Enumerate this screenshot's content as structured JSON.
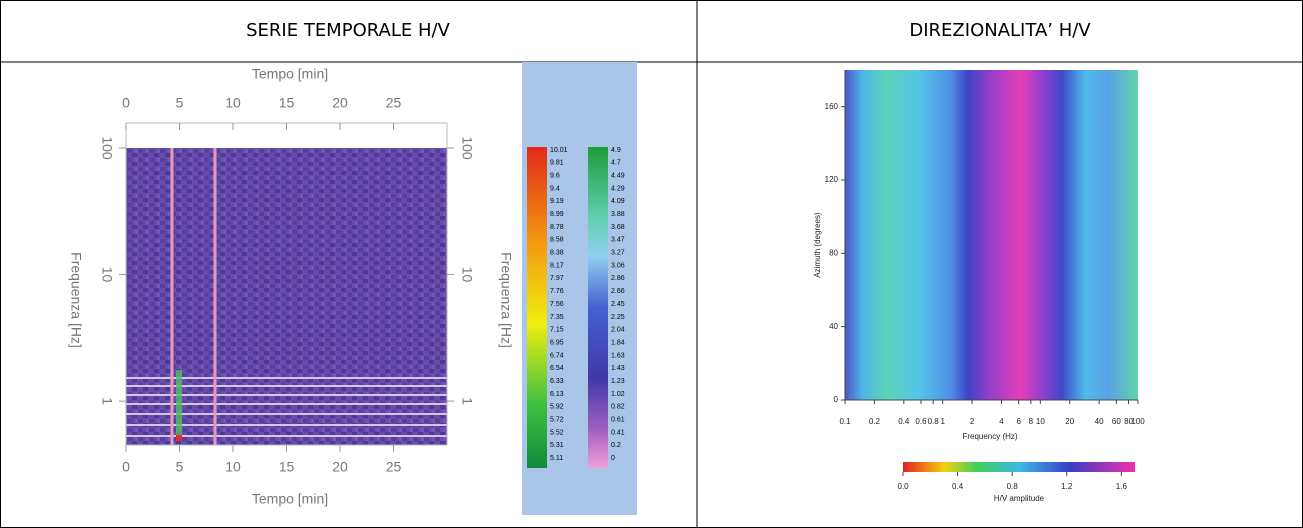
{
  "header": {
    "left": "SERIE TEMPORALE H/V",
    "right": "DIREZIONALITA’ H/V"
  },
  "spectrogram": {
    "x_label": "Tempo [min]",
    "y_label": "Frequenza [Hz]",
    "xlim": [
      0,
      30
    ],
    "xticks": [
      0,
      5,
      10,
      15,
      20,
      25
    ],
    "ylim": [
      0.45,
      100
    ],
    "yticks": [
      100,
      10,
      1
    ],
    "log_y": true,
    "colorbar_left": [
      "10.01",
      "9.81",
      "9.6",
      "9.4",
      "9.19",
      "8.99",
      "8.78",
      "8.58",
      "8.38",
      "8.17",
      "7.97",
      "7.76",
      "7.56",
      "7.35",
      "7.15",
      "6.95",
      "6.74",
      "6.54",
      "6.33",
      "6.13",
      "5.92",
      "5.72",
      "5.52",
      "5.31",
      "5.11"
    ],
    "colorbar_right": [
      "4.9",
      "4.7",
      "4.49",
      "4.29",
      "4.09",
      "3.88",
      "3.68",
      "3.47",
      "3.27",
      "3.06",
      "2.86",
      "2.66",
      "2.45",
      "2.25",
      "2.04",
      "1.84",
      "1.63",
      "1.43",
      "1.23",
      "1.02",
      "0.82",
      "0.61",
      "0.41",
      "0.2",
      "0"
    ]
  },
  "directivity": {
    "x_label": "Frequency (Hz)",
    "y_label": "Azimuth (degrees)",
    "xlim": [
      0.1,
      100
    ],
    "xticks": [
      0.1,
      0.2,
      0.4,
      0.6,
      0.8,
      1,
      2,
      4,
      6,
      8,
      10,
      20,
      40,
      60,
      80,
      100
    ],
    "log_x": true,
    "ylim": [
      0,
      180
    ],
    "yticks": [
      0,
      40,
      80,
      120,
      160
    ],
    "colorbar_label": "H/V amplitude",
    "colorbar_lim": [
      0,
      1.7
    ],
    "colorbar_ticks": [
      {
        "value": 0,
        "label": "0.0"
      },
      0.4,
      0.8,
      1.2,
      1.6
    ]
  }
}
